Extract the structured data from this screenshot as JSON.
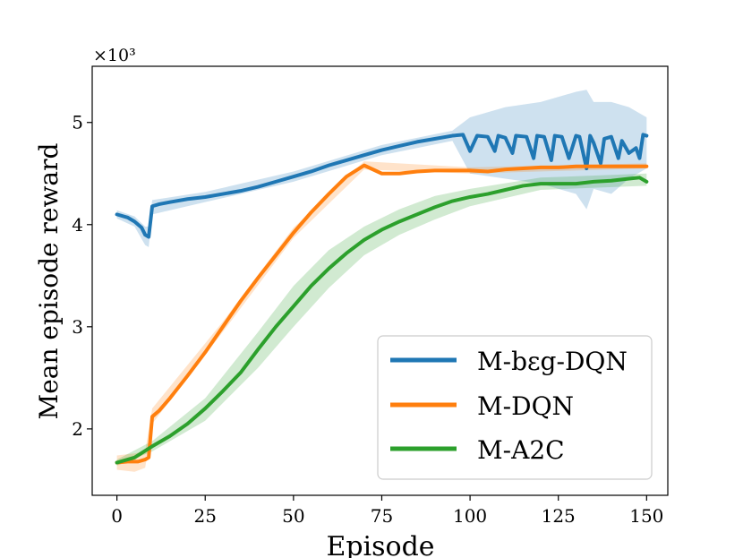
{
  "chart_data": {
    "type": "line",
    "title": "",
    "xlabel": "Episode",
    "ylabel": "Mean episode reward",
    "y_multiplier_label": "×10³",
    "xlim": [
      -7,
      156
    ],
    "ylim": [
      1.35,
      5.55
    ],
    "x_ticks": [
      0,
      25,
      50,
      75,
      100,
      125,
      150
    ],
    "y_ticks": [
      2,
      3,
      4,
      5
    ],
    "legend_position": "lower-right",
    "series": [
      {
        "name": "M-bεg-DQN",
        "color": "#1f77b4",
        "points": [
          [
            0,
            4.1
          ],
          [
            3,
            4.07
          ],
          [
            5,
            4.03
          ],
          [
            7,
            3.97
          ],
          [
            8,
            3.9
          ],
          [
            9,
            3.88
          ],
          [
            10,
            4.18
          ],
          [
            12,
            4.2
          ],
          [
            15,
            4.22
          ],
          [
            20,
            4.25
          ],
          [
            25,
            4.27
          ],
          [
            30,
            4.3
          ],
          [
            35,
            4.33
          ],
          [
            40,
            4.37
          ],
          [
            45,
            4.42
          ],
          [
            50,
            4.47
          ],
          [
            55,
            4.52
          ],
          [
            60,
            4.58
          ],
          [
            65,
            4.63
          ],
          [
            70,
            4.68
          ],
          [
            75,
            4.73
          ],
          [
            80,
            4.77
          ],
          [
            85,
            4.81
          ],
          [
            90,
            4.84
          ],
          [
            95,
            4.87
          ],
          [
            98,
            4.88
          ],
          [
            100,
            4.72
          ],
          [
            102,
            4.87
          ],
          [
            105,
            4.86
          ],
          [
            107,
            4.72
          ],
          [
            108,
            4.87
          ],
          [
            110,
            4.85
          ],
          [
            112,
            4.7
          ],
          [
            113,
            4.87
          ],
          [
            116,
            4.86
          ],
          [
            118,
            4.65
          ],
          [
            119,
            4.87
          ],
          [
            121,
            4.86
          ],
          [
            123,
            4.63
          ],
          [
            124,
            4.87
          ],
          [
            126,
            4.86
          ],
          [
            128,
            4.65
          ],
          [
            130,
            4.87
          ],
          [
            131,
            4.86
          ],
          [
            133,
            4.55
          ],
          [
            134,
            4.87
          ],
          [
            135,
            4.8
          ],
          [
            137,
            4.6
          ],
          [
            138,
            4.84
          ],
          [
            140,
            4.86
          ],
          [
            142,
            4.65
          ],
          [
            143,
            4.82
          ],
          [
            145,
            4.7
          ],
          [
            147,
            4.75
          ],
          [
            148,
            4.65
          ],
          [
            149,
            4.88
          ],
          [
            150,
            4.87
          ]
        ],
        "band": [
          [
            0,
            4.06,
            4.14
          ],
          [
            5,
            3.98,
            4.08
          ],
          [
            8,
            3.8,
            3.98
          ],
          [
            9,
            3.78,
            3.98
          ],
          [
            10,
            4.1,
            4.24
          ],
          [
            25,
            4.22,
            4.32
          ],
          [
            50,
            4.42,
            4.52
          ],
          [
            75,
            4.68,
            4.78
          ],
          [
            95,
            4.82,
            4.92
          ],
          [
            100,
            4.5,
            5.05
          ],
          [
            110,
            4.45,
            5.15
          ],
          [
            120,
            4.4,
            5.2
          ],
          [
            130,
            4.3,
            5.3
          ],
          [
            133,
            4.15,
            5.32
          ],
          [
            135,
            4.35,
            5.2
          ],
          [
            140,
            4.3,
            5.2
          ],
          [
            145,
            4.45,
            5.15
          ],
          [
            150,
            4.55,
            5.05
          ]
        ]
      },
      {
        "name": "M-DQN",
        "color": "#ff7f0e",
        "points": [
          [
            0,
            1.67
          ],
          [
            3,
            1.68
          ],
          [
            6,
            1.68
          ],
          [
            8,
            1.7
          ],
          [
            9,
            1.72
          ],
          [
            10,
            2.12
          ],
          [
            12,
            2.18
          ],
          [
            15,
            2.3
          ],
          [
            20,
            2.52
          ],
          [
            25,
            2.75
          ],
          [
            30,
            3.0
          ],
          [
            35,
            3.25
          ],
          [
            40,
            3.48
          ],
          [
            45,
            3.7
          ],
          [
            50,
            3.92
          ],
          [
            55,
            4.12
          ],
          [
            60,
            4.3
          ],
          [
            65,
            4.47
          ],
          [
            70,
            4.58
          ],
          [
            75,
            4.5
          ],
          [
            80,
            4.5
          ],
          [
            85,
            4.52
          ],
          [
            90,
            4.53
          ],
          [
            95,
            4.53
          ],
          [
            100,
            4.53
          ],
          [
            105,
            4.52
          ],
          [
            110,
            4.54
          ],
          [
            115,
            4.55
          ],
          [
            120,
            4.56
          ],
          [
            125,
            4.56
          ],
          [
            130,
            4.57
          ],
          [
            135,
            4.57
          ],
          [
            140,
            4.57
          ],
          [
            145,
            4.57
          ],
          [
            150,
            4.57
          ]
        ],
        "band": [
          [
            0,
            1.6,
            1.74
          ],
          [
            5,
            1.58,
            1.76
          ],
          [
            8,
            1.62,
            1.78
          ],
          [
            10,
            2.05,
            2.2
          ],
          [
            30,
            2.95,
            3.05
          ],
          [
            50,
            3.87,
            3.97
          ],
          [
            70,
            4.54,
            4.62
          ],
          [
            100,
            4.5,
            4.56
          ],
          [
            150,
            4.55,
            4.6
          ]
        ]
      },
      {
        "name": "M-A2C",
        "color": "#2ca02c",
        "points": [
          [
            0,
            1.67
          ],
          [
            5,
            1.72
          ],
          [
            10,
            1.83
          ],
          [
            15,
            1.93
          ],
          [
            20,
            2.05
          ],
          [
            25,
            2.2
          ],
          [
            30,
            2.37
          ],
          [
            35,
            2.55
          ],
          [
            40,
            2.78
          ],
          [
            45,
            3.0
          ],
          [
            50,
            3.2
          ],
          [
            55,
            3.4
          ],
          [
            60,
            3.57
          ],
          [
            65,
            3.72
          ],
          [
            70,
            3.85
          ],
          [
            75,
            3.95
          ],
          [
            80,
            4.03
          ],
          [
            85,
            4.1
          ],
          [
            90,
            4.17
          ],
          [
            95,
            4.23
          ],
          [
            100,
            4.27
          ],
          [
            105,
            4.3
          ],
          [
            110,
            4.34
          ],
          [
            115,
            4.38
          ],
          [
            120,
            4.4
          ],
          [
            125,
            4.4
          ],
          [
            130,
            4.4
          ],
          [
            135,
            4.42
          ],
          [
            140,
            4.43
          ],
          [
            145,
            4.45
          ],
          [
            148,
            4.46
          ],
          [
            150,
            4.42
          ]
        ],
        "band": [
          [
            0,
            1.64,
            1.7
          ],
          [
            10,
            1.78,
            1.88
          ],
          [
            25,
            2.08,
            2.3
          ],
          [
            40,
            2.6,
            2.95
          ],
          [
            50,
            3.0,
            3.4
          ],
          [
            60,
            3.38,
            3.75
          ],
          [
            70,
            3.7,
            3.98
          ],
          [
            80,
            3.9,
            4.15
          ],
          [
            90,
            4.05,
            4.28
          ],
          [
            100,
            4.18,
            4.35
          ],
          [
            120,
            4.34,
            4.46
          ],
          [
            150,
            4.38,
            4.5
          ]
        ]
      }
    ]
  }
}
